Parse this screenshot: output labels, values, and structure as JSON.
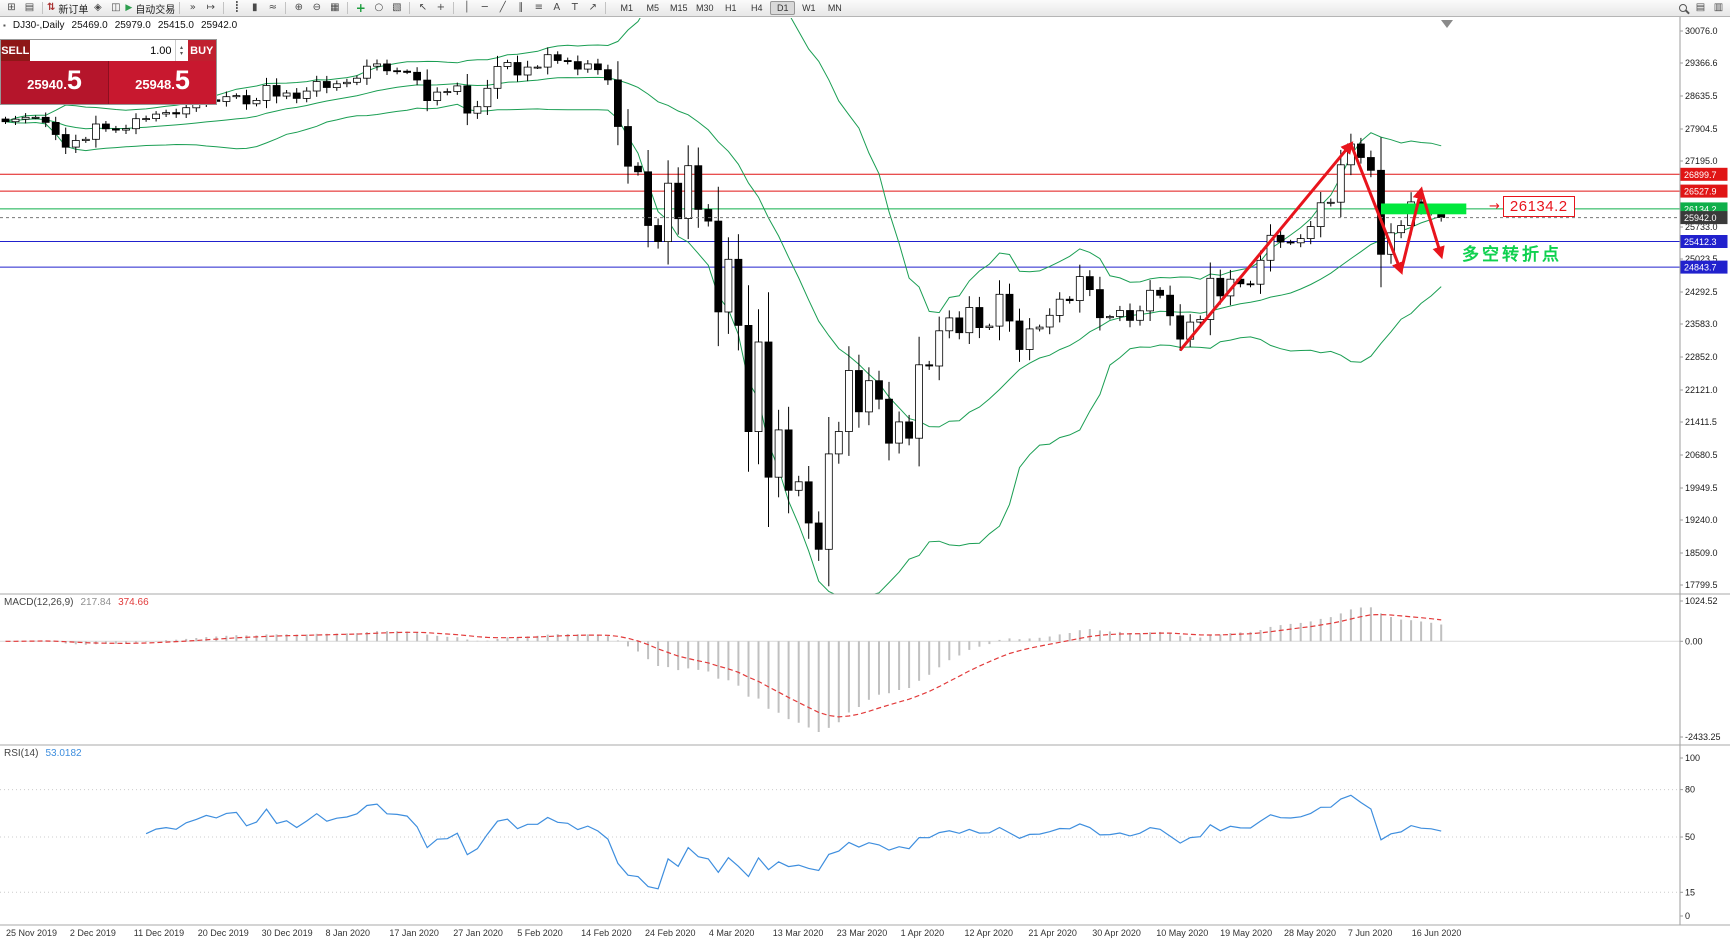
{
  "toolbar": {
    "new_order_label": "新订单",
    "algo_trading_label": "自动交易",
    "timeframes": [
      "M1",
      "M5",
      "M15",
      "M30",
      "H1",
      "H4",
      "D1",
      "W1",
      "MN"
    ],
    "active_timeframe": "D1"
  },
  "icons": {
    "new_chart": "⊞",
    "profiles": "▤",
    "new_order": "⇅",
    "market": "◈",
    "metaeditor": "◫",
    "algo_play": "▶",
    "auto_scroll": "»",
    "chart_shift": "↦",
    "bar_chart": "┋",
    "candle_chart": "▮",
    "line_chart": "≈",
    "zoom_in": "⊕",
    "zoom_out": "⊖",
    "tile_windows": "▦",
    "indicators_add": "+",
    "periods": "○",
    "templates": "▧",
    "cursor": "↖",
    "crosshair": "+",
    "vline": "│",
    "hline": "─",
    "trendline": "╱",
    "channel": "∥",
    "fibonacci": "≡",
    "text_tool": "A",
    "label_tool": "T",
    "arrows_tool": "↗",
    "data_window": "▤",
    "navigator": "▥",
    "volume_up": "▴",
    "volume_down": "▾",
    "symbol_marker": "▪"
  },
  "symbol_header": {
    "title": "DJ30-,Daily",
    "open": "25469.0",
    "high": "25979.0",
    "low": "25415.0",
    "close": "25942.0"
  },
  "trade_panel": {
    "sell_label": "SELL",
    "buy_label": "BUY",
    "volume": "1.00",
    "sell_price": "25940.",
    "sell_price_big": "5",
    "buy_price": "25948.",
    "buy_price_big": "5"
  },
  "chart_data": {
    "type": "candlestick",
    "symbol": "DJ30-",
    "timeframe": "Daily",
    "date_range": [
      "25 Nov 2019",
      "19 Jun 2020"
    ],
    "y_top": 30076.0,
    "y_bottom": 17799.5,
    "y_axis_ticks": [
      30076.0,
      29366.6,
      28635.5,
      27904.5,
      27195.0,
      25733.0,
      25023.5,
      24292.5,
      23583.0,
      22852.0,
      22121.0,
      21411.5,
      20680.5,
      19949.5,
      19240.0,
      18509.0,
      17799.5
    ],
    "closes": [
      28066,
      28121,
      28164,
      28164,
      28051,
      27783,
      27502,
      27649,
      27677,
      28015,
      27909,
      27881,
      27911,
      28132,
      28135,
      28235,
      28267,
      28239,
      28376,
      28455,
      28551,
      28515,
      28621,
      28645,
      28462,
      28538,
      28868,
      28634,
      28703,
      28583,
      28745,
      28956,
      28823,
      28907,
      28939,
      29030,
      29297,
      29348,
      29196,
      29186,
      29160,
      28989,
      28535,
      28722,
      28734,
      28859,
      28256,
      28399,
      28807,
      29290,
      29379,
      29102,
      29276,
      29276,
      29551,
      29423,
      29398,
      29232,
      29348,
      29219,
      28992,
      27960,
      27081,
      26957,
      25766,
      25409,
      26703,
      25917,
      27090,
      26121,
      25864,
      23851,
      25018,
      23553,
      21200,
      23185,
      20188,
      21237,
      19898,
      20087,
      19173,
      18591,
      20704,
      21200,
      22552,
      21636,
      22327,
      21917,
      20943,
      21413,
      21052,
      22679,
      22653,
      23433,
      23719,
      23390,
      23949,
      23504,
      23537,
      24242,
      23650,
      23018,
      23475,
      23515,
      23775,
      24133,
      24101,
      24633,
      24345,
      23723,
      23749,
      23883,
      23664,
      23875,
      24331,
      24221,
      23764,
      23247,
      23625,
      23685,
      24597,
      24206,
      24575,
      24474,
      24465,
      24995,
      25548,
      25400,
      25383,
      25475,
      25742,
      26269,
      26281,
      27110,
      27572,
      27272,
      26989,
      25128,
      25605,
      25763,
      26289,
      26119,
      26080,
      25942
    ],
    "bands": {
      "type": "bollinger",
      "period": 20,
      "deviation": 2,
      "color": "#1a9e53"
    },
    "h_lines": [
      {
        "price": 26899.7,
        "label": "26899.7",
        "color": "#e01515"
      },
      {
        "price": 26527.9,
        "label": "26527.9",
        "color": "#e01515"
      },
      {
        "price": 26134.2,
        "label": "26134.2",
        "color": "#0faf4a"
      },
      {
        "price": 25412.3,
        "label": "25412.3",
        "color": "#2121cd"
      },
      {
        "price": 24843.7,
        "label": "24843.7",
        "color": "#2121cd"
      }
    ],
    "current_price": {
      "price": 25942.0,
      "label": "25942.0",
      "color": "#3a3a3a"
    },
    "dates": [
      "25 Nov 2019",
      "2 Dec 2019",
      "11 Dec 2019",
      "20 Dec 2019",
      "30 Dec 2019",
      "8 Jan 2020",
      "17 Jan 2020",
      "27 Jan 2020",
      "5 Feb 2020",
      "14 Feb 2020",
      "24 Feb 2020",
      "4 Mar 2020",
      "13 Mar 2020",
      "23 Mar 2020",
      "1 Apr 2020",
      "12 Apr 2020",
      "21 Apr 2020",
      "30 Apr 2020",
      "10 May 2020",
      "19 May 2020",
      "28 May 2020",
      "7 Jun 2020",
      "16 Jun 2020"
    ]
  },
  "macd": {
    "label": "MACD(12,26,9)",
    "main_value": "217.84",
    "signal_value": "374.66",
    "fast": 12,
    "slow": 26,
    "signal": 9,
    "y_ticks": [
      1024.52,
      0.0,
      -2433.25
    ],
    "y_max": 1024.52,
    "y_min": -2433.25,
    "histogram_color": "#c0c0c0",
    "signal_color": "#e23b3b"
  },
  "rsi": {
    "label": "RSI(14)",
    "value": "53.0182",
    "period": 14,
    "levels": [
      100,
      80,
      50,
      15,
      0
    ],
    "line_color": "#3e8ede"
  },
  "annotations": {
    "price_callout": "26134.2",
    "callout_color": "#e8141c",
    "turning_point_text": "多空转折点",
    "turning_point_color": "#0fd14f",
    "highlight_bar": {
      "price": 26134.2,
      "half_height": 120,
      "from_index": 137,
      "to_index": 145.5,
      "color": "#00e83c"
    },
    "trend_arrows": {
      "color": "#e8141c",
      "points": [
        {
          "index": 117,
          "price": 23000
        },
        {
          "index": 134,
          "price": 27570
        },
        {
          "index": 139,
          "price": 24750
        },
        {
          "index": 141,
          "price": 26550
        },
        {
          "index": 143,
          "price": 25100
        }
      ]
    }
  }
}
